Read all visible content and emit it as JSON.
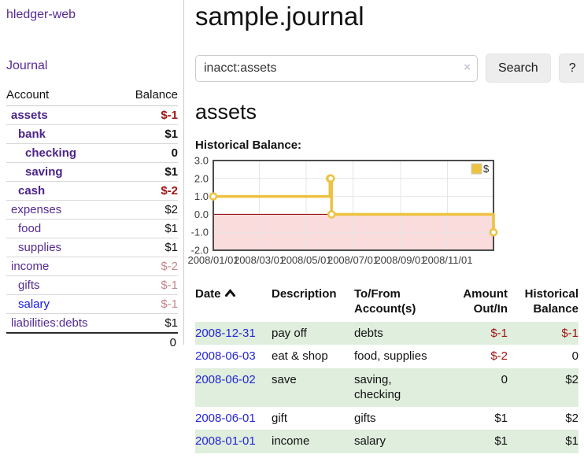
{
  "brand": "hledger-web",
  "sidebar": {
    "journal_link": "Journal",
    "accounts_table": {
      "account_header": "Account",
      "balance_header": "Balance",
      "rows": [
        {
          "name": "assets",
          "balance": "$-1",
          "indent": 0,
          "emph": true
        },
        {
          "name": "bank",
          "balance": "$1",
          "indent": 1,
          "emph": true
        },
        {
          "name": "checking",
          "balance": "0",
          "indent": 2,
          "emph": true
        },
        {
          "name": "saving",
          "balance": "$1",
          "indent": 2,
          "emph": true
        },
        {
          "name": "cash",
          "balance": "$-2",
          "indent": 1,
          "emph": true
        },
        {
          "name": "expenses",
          "balance": "$2",
          "indent": 0,
          "emph": false
        },
        {
          "name": "food",
          "balance": "$1",
          "indent": 1,
          "emph": false
        },
        {
          "name": "supplies",
          "balance": "$1",
          "indent": 1,
          "emph": false
        },
        {
          "name": "income",
          "balance": "$-2",
          "indent": 0,
          "emph": false
        },
        {
          "name": "gifts",
          "balance": "$-1",
          "indent": 1,
          "emph": false
        },
        {
          "name": "salary",
          "balance": "$-1",
          "indent": 1,
          "emph": false,
          "unvisited": true
        },
        {
          "name": "liabilities:debts",
          "balance": "$1",
          "indent": 0,
          "emph": false
        }
      ],
      "total": "0"
    }
  },
  "main": {
    "title": "sample.journal",
    "search": {
      "value": "inacct:assets",
      "clear_icon": "×",
      "search_button": "Search",
      "help_button": "?"
    },
    "account_title": "assets",
    "chart_label": "Historical Balance:"
  },
  "chart_data": {
    "type": "line",
    "step": true,
    "title": "Historical Balance",
    "series": [
      {
        "name": "$",
        "points": [
          {
            "date": "2008-01-01",
            "value": 1
          },
          {
            "date": "2008-06-01",
            "value": 2
          },
          {
            "date": "2008-06-02",
            "value": 2
          },
          {
            "date": "2008-06-03",
            "value": 0
          },
          {
            "date": "2008-12-31",
            "value": -1
          }
        ]
      }
    ],
    "x_start": "2008-01-01",
    "x_end": "2008-12-31",
    "x_ticks": [
      "2008/01/01",
      "2008/03/01",
      "2008/05/01",
      "2008/07/01",
      "2008/09/01",
      "2008/11/01"
    ],
    "y_ticks": [
      "3.0",
      "2.0",
      "1.0",
      "0.0",
      "-1.0",
      "-2.0"
    ],
    "ylim": [
      -2,
      3
    ],
    "legend": {
      "label": "$",
      "position": "top-right"
    },
    "colors": {
      "line": "#edc240",
      "marker_fill": "#ffffff",
      "negative_region": "#fadcdc",
      "zero_line": "#8b0000",
      "grid": "#e5e5e5",
      "border": "#4c4c4c",
      "tick_text": "#3c3c3c"
    }
  },
  "transactions": {
    "headers": {
      "date": "Date",
      "description": "Description",
      "accounts": "To/From Account(s)",
      "amount": "Amount Out/In",
      "balance": "Historical Balance"
    },
    "rows": [
      {
        "date": "2008-12-31",
        "description": "pay off",
        "accounts": "debts",
        "amount": "$-1",
        "balance": "$-1"
      },
      {
        "date": "2008-06-03",
        "description": "eat & shop",
        "accounts": "food, supplies",
        "amount": "$-2",
        "balance": "0"
      },
      {
        "date": "2008-06-02",
        "description": "save",
        "accounts": "saving, checking",
        "amount": "0",
        "balance": "$2"
      },
      {
        "date": "2008-06-01",
        "description": "gift",
        "accounts": "gifts",
        "amount": "$1",
        "balance": "$2"
      },
      {
        "date": "2008-01-01",
        "description": "income",
        "accounts": "salary",
        "amount": "$1",
        "balance": "$1"
      }
    ]
  }
}
